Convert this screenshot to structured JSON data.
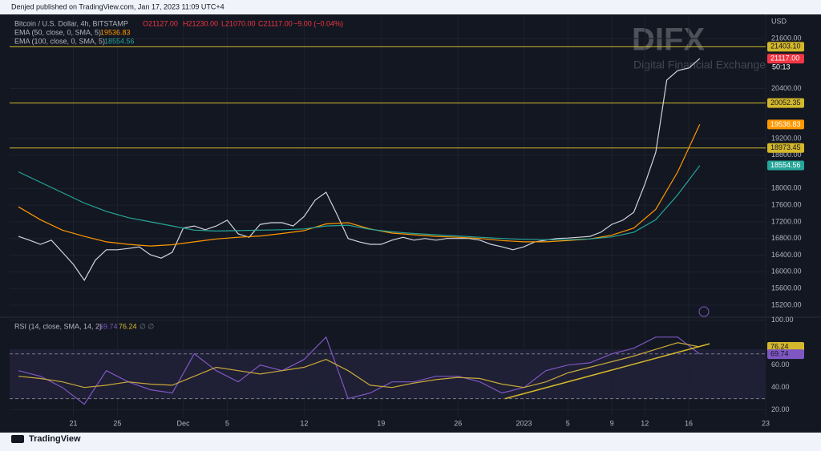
{
  "header": {
    "published": "Denjed published on TradingView.com, Jan 17, 2023 11:09 UTC+4",
    "symbol": "Bitcoin / U.S. Dollar, 4h, BITSTAMP",
    "ohlc": [
      "O21127.00",
      "H21230.00",
      "L21070.00",
      "C21117.00",
      "−9.00 (−0.04%)"
    ],
    "currency": "USD"
  },
  "watermark": {
    "brand": "DIFX",
    "tagline": "Digital Financial Exchange"
  },
  "footer": {
    "brand": "TradingView"
  },
  "chart_data": [
    {
      "type": "line",
      "xlim": [
        15.2,
        84
      ],
      "ylim": [
        14930,
        22140
      ],
      "xticks": [
        {
          "value": 21,
          "label": "21"
        },
        {
          "value": 25,
          "label": "25"
        },
        {
          "value": 31,
          "label": "Dec"
        },
        {
          "value": 35,
          "label": "5"
        },
        {
          "value": 42,
          "label": "12"
        },
        {
          "value": 49,
          "label": "19"
        },
        {
          "value": 56,
          "label": "26"
        },
        {
          "value": 62,
          "label": "2023"
        },
        {
          "value": 66,
          "label": "5"
        },
        {
          "value": 70,
          "label": "9"
        },
        {
          "value": 73,
          "label": "12"
        },
        {
          "value": 77,
          "label": "16"
        },
        {
          "value": 84,
          "label": "23"
        }
      ],
      "yticks": [
        {
          "value": 15200,
          "label": "15200.00"
        },
        {
          "value": 15600,
          "label": "15600.00"
        },
        {
          "value": 16000,
          "label": "16000.00"
        },
        {
          "value": 16400,
          "label": "16400.00"
        },
        {
          "value": 16800,
          "label": "16800.00"
        },
        {
          "value": 17200,
          "label": "17200.00"
        },
        {
          "value": 17600,
          "label": "17600.00"
        },
        {
          "value": 18000,
          "label": "18000.00"
        },
        {
          "value": 18800,
          "label": "18800.00"
        },
        {
          "value": 19200,
          "label": "19200.00"
        },
        {
          "value": 20400,
          "label": "20400.00"
        },
        {
          "value": 21600,
          "label": "21600.00"
        }
      ],
      "grid": true,
      "series": [
        {
          "name": "Bitcoin / U.S. Dollar",
          "color": "#d1d4dc",
          "x": [
            16,
            17,
            18,
            19,
            20,
            21,
            22,
            23,
            24,
            25,
            26,
            27,
            28,
            29,
            30,
            31,
            32,
            33,
            34,
            35,
            36,
            37,
            38,
            39,
            40,
            41,
            42,
            43,
            44,
            45,
            46,
            47,
            48,
            49,
            50,
            51,
            52,
            53,
            54,
            55,
            56,
            57,
            58,
            59,
            60,
            61,
            62,
            63,
            64,
            65,
            66,
            67,
            68,
            69,
            70,
            71,
            72,
            73,
            74,
            75,
            76,
            77,
            78
          ],
          "values": [
            16850,
            16760,
            16660,
            16760,
            16470,
            16180,
            15800,
            16280,
            16530,
            16530,
            16560,
            16600,
            16410,
            16330,
            16470,
            17050,
            17100,
            17010,
            17100,
            17240,
            16910,
            16830,
            17140,
            17180,
            17180,
            17100,
            17330,
            17720,
            17910,
            17370,
            16800,
            16720,
            16660,
            16660,
            16760,
            16830,
            16760,
            16800,
            16760,
            16800,
            16800,
            16800,
            16760,
            16660,
            16600,
            16530,
            16600,
            16720,
            16760,
            16800,
            16810,
            16830,
            16850,
            16950,
            17140,
            17240,
            17430,
            18100,
            18870,
            20600,
            20830,
            20890,
            21120
          ]
        },
        {
          "name": "EMA (50, close, 0, SMA, 5)",
          "color": "#ff9800",
          "x": [
            16,
            18,
            20,
            22,
            24,
            26,
            28,
            30,
            32,
            34,
            36,
            38,
            40,
            42,
            44,
            46,
            48,
            50,
            52,
            54,
            56,
            58,
            60,
            62,
            64,
            66,
            68,
            70,
            72,
            74,
            76,
            78
          ],
          "values": [
            17560,
            17250,
            17000,
            16850,
            16720,
            16660,
            16620,
            16650,
            16720,
            16790,
            16830,
            16860,
            16920,
            16990,
            17150,
            17180,
            17030,
            16930,
            16890,
            16850,
            16830,
            16800,
            16750,
            16720,
            16720,
            16750,
            16790,
            16880,
            17050,
            17500,
            18400,
            19540
          ]
        },
        {
          "name": "EMA (100, close, 0, SMA, 5)",
          "color": "#26a69a",
          "x": [
            16,
            18,
            20,
            22,
            24,
            26,
            28,
            30,
            32,
            34,
            36,
            38,
            40,
            42,
            44,
            46,
            48,
            50,
            52,
            54,
            56,
            58,
            60,
            62,
            64,
            66,
            68,
            70,
            72,
            74,
            76,
            78
          ],
          "values": [
            18400,
            18150,
            17900,
            17650,
            17450,
            17300,
            17200,
            17100,
            17000,
            16980,
            16990,
            17000,
            17010,
            17030,
            17100,
            17120,
            17020,
            16960,
            16920,
            16890,
            16860,
            16830,
            16800,
            16780,
            16770,
            16770,
            16790,
            16840,
            16950,
            17250,
            17850,
            18550
          ]
        }
      ],
      "hlines": [
        {
          "value": 21403.1,
          "label": "21403.10"
        },
        {
          "value": 20052.35,
          "label": "20052.35"
        },
        {
          "value": 18973.45,
          "label": "18973.45"
        }
      ],
      "hline_color": "#d4b82b",
      "price_tags": [
        {
          "value": 21117,
          "label": "21117.00",
          "sub": "50:13",
          "color": "#f23645"
        },
        {
          "value": 19536.83,
          "label": "19536.83",
          "color": "#ff9800"
        },
        {
          "value": 18554.56,
          "label": "18554.56",
          "color": "#26a69a"
        }
      ]
    },
    {
      "type": "line",
      "title": "RSI (14, close, SMA, 14, 2)",
      "xlim": [
        15.2,
        84
      ],
      "ylim": [
        14,
        102
      ],
      "yticks": [
        {
          "value": 20,
          "label": "20.00"
        },
        {
          "value": 40,
          "label": "40.00"
        },
        {
          "value": 60,
          "label": "60.00"
        },
        {
          "value": 100,
          "label": "100.00"
        }
      ],
      "bands": [
        30,
        70
      ],
      "series": [
        {
          "name": "RSI",
          "color": "#7e57c2",
          "x": [
            16,
            18,
            20,
            22,
            24,
            26,
            28,
            30,
            32,
            34,
            36,
            38,
            40,
            42,
            44,
            46,
            48,
            50,
            52,
            54,
            56,
            58,
            60,
            62,
            64,
            66,
            68,
            70,
            72,
            74,
            76,
            78
          ],
          "values": [
            55,
            50,
            40,
            25,
            55,
            45,
            38,
            35,
            70,
            55,
            45,
            60,
            55,
            65,
            85,
            30,
            35,
            45,
            45,
            50,
            50,
            45,
            35,
            40,
            55,
            60,
            62,
            70,
            75,
            85,
            85,
            69.74
          ]
        },
        {
          "name": "RSI-based MA",
          "color": "#c9a93a",
          "x": [
            16,
            18,
            20,
            22,
            24,
            26,
            28,
            30,
            32,
            34,
            36,
            38,
            40,
            42,
            44,
            46,
            48,
            50,
            52,
            54,
            56,
            58,
            60,
            62,
            64,
            66,
            68,
            70,
            72,
            74,
            76,
            78
          ],
          "values": [
            50,
            48,
            45,
            40,
            42,
            45,
            43,
            42,
            50,
            58,
            55,
            52,
            55,
            58,
            65,
            55,
            42,
            40,
            44,
            47,
            49,
            48,
            43,
            40,
            45,
            53,
            58,
            63,
            68,
            74,
            80,
            76.24
          ]
        }
      ],
      "trendline": {
        "x": [
          60.3,
          78.9
        ],
        "y": [
          30,
          79
        ],
        "color": "#d4b82b"
      },
      "tags": [
        {
          "value": 76.24,
          "label": "76.24",
          "color": "#d4b82b"
        },
        {
          "value": 69.74,
          "label": "69.74",
          "color": "#7e57c2"
        }
      ]
    }
  ]
}
